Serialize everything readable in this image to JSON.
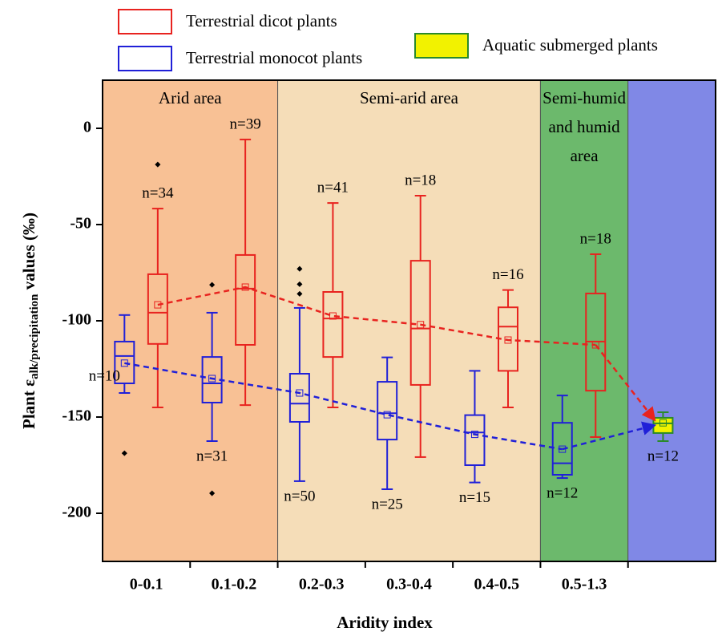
{
  "chart_data": {
    "type": "box",
    "x_label": "Aridity index",
    "y_label": "Plant ε",
    "y_label_sub": "alk/precipitation",
    "y_label_suffix": " values (‰)",
    "categories": [
      "0-0.1",
      "0.1-0.2",
      "0.2-0.3",
      "0.3-0.4",
      "0.4-0.5",
      "0.5-1.3",
      null
    ],
    "ylim": [
      -225,
      25
    ],
    "yticks": [
      0,
      -50,
      -100,
      -150,
      -200
    ],
    "legend": "top",
    "regions": [
      {
        "label": [
          "Arid area"
        ],
        "start": 0,
        "end": 1,
        "color": "#f8c195"
      },
      {
        "label": [
          "Semi-arid area"
        ],
        "start": 2,
        "end": 4,
        "color": "#f5ddb8"
      },
      {
        "label": [
          "Semi-humid",
          "and humid",
          "area"
        ],
        "start": 5,
        "end": 5,
        "color": "#6cb96c"
      },
      {
        "label": [],
        "start": 6,
        "end": 6,
        "color": "#8088e6"
      }
    ],
    "series": [
      {
        "name": "Terrestrial dicot plants",
        "color": "#e8231f",
        "fill": "none",
        "whisker_high": [
          -41.7,
          -5.8,
          -38.8,
          -35,
          -84,
          -65.4,
          null
        ],
        "q3": [
          -75.8,
          -65.8,
          -85,
          -68.8,
          -93,
          -85.8,
          null
        ],
        "median": [
          -95.8,
          -83.3,
          -98.8,
          -104,
          -103,
          -110.8,
          null
        ],
        "q1": [
          -112,
          -112.5,
          -118.8,
          -133.3,
          -126,
          -136.3,
          null
        ],
        "whisker_low": [
          -145,
          -143.8,
          -145,
          -170.8,
          -145,
          -160.4,
          null
        ],
        "mean": [
          -91.7,
          -82.5,
          -97.5,
          -102,
          -110,
          -112.5,
          null
        ],
        "outliers": [
          [
            -18.8
          ],
          [],
          [],
          [],
          [],
          [],
          []
        ],
        "n_labels": [
          "n=34",
          "n=39",
          "n=41",
          "n=18",
          "n=16",
          "n=18",
          null
        ]
      },
      {
        "name": "Terrestrial monocot plants",
        "color": "#2020d8",
        "fill": "none",
        "whisker_high": [
          -97,
          -95.8,
          -93.3,
          -119,
          -126,
          -138.8,
          null
        ],
        "q3": [
          -110.8,
          -118.8,
          -127.5,
          -131.7,
          -149,
          -153,
          null
        ],
        "median": [
          -118.3,
          -132.5,
          -143,
          -148,
          -158,
          -174,
          null
        ],
        "q1": [
          -132.5,
          -142.5,
          -152.5,
          -161.7,
          -175,
          -180,
          null
        ],
        "whisker_low": [
          -137.5,
          -162.5,
          -183.3,
          -187.5,
          -184,
          -181.7,
          null
        ],
        "mean": [
          -122,
          -130,
          -137.5,
          -148.8,
          -159,
          -166.7,
          null
        ],
        "outliers": [
          [
            -168.8
          ],
          [
            -81.3,
            -189.6
          ],
          [
            -73,
            -81,
            -86
          ],
          [],
          [],
          [],
          []
        ],
        "n_labels": [
          "n=10",
          "n=31",
          "n=50",
          "n=25",
          "n=15",
          "n=12",
          null
        ]
      },
      {
        "name": "Aquatic submerged plants",
        "color": "#2a8a2a",
        "fill": "#f2f200",
        "whisker_high": [
          null,
          null,
          null,
          null,
          null,
          null,
          -147.5
        ],
        "q3": [
          null,
          null,
          null,
          null,
          null,
          null,
          -150.4
        ],
        "median": [
          null,
          null,
          null,
          null,
          null,
          null,
          -153.3
        ],
        "q1": [
          null,
          null,
          null,
          null,
          null,
          null,
          -158.3
        ],
        "whisker_low": [
          null,
          null,
          null,
          null,
          null,
          null,
          -162.5
        ],
        "mean": [
          null,
          null,
          null,
          null,
          null,
          null,
          -153
        ],
        "outliers": [
          [],
          [],
          [],
          [],
          [],
          [],
          []
        ],
        "n_labels": [
          null,
          null,
          null,
          null,
          null,
          null,
          "n=12"
        ]
      }
    ]
  }
}
